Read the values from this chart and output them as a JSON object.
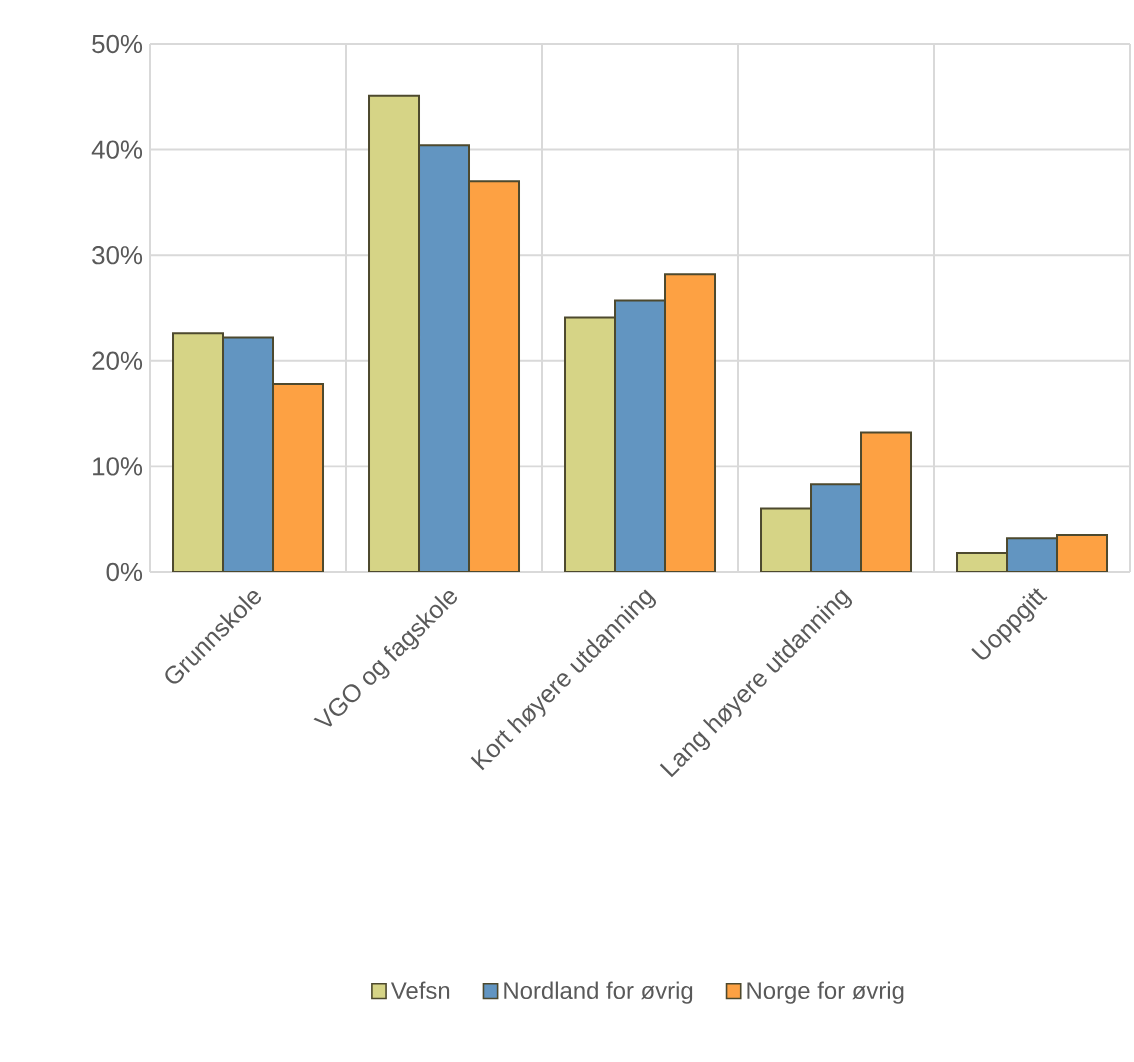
{
  "chart_data": {
    "type": "bar",
    "categories": [
      "Grunnskole",
      "VGO og fagskole",
      "Kort høyere utdanning",
      "Lang høyere utdanning",
      "Uoppgitt"
    ],
    "series": [
      {
        "name": "Vefsn",
        "color": "#d6d486",
        "values": [
          22.6,
          45.1,
          24.1,
          6.0,
          1.8
        ]
      },
      {
        "name": "Nordland for øvrig",
        "color": "#6295c1",
        "values": [
          22.2,
          40.4,
          25.7,
          8.3,
          3.2
        ]
      },
      {
        "name": "Norge for øvrig",
        "color": "#fda143",
        "values": [
          17.8,
          37.0,
          28.2,
          13.2,
          3.5
        ]
      }
    ],
    "ylim": [
      0,
      50
    ],
    "yticks": [
      {
        "value": 0,
        "label": "0%"
      },
      {
        "value": 10,
        "label": "10%"
      },
      {
        "value": 20,
        "label": "20%"
      },
      {
        "value": 30,
        "label": "30%"
      },
      {
        "value": 40,
        "label": "40%"
      },
      {
        "value": 50,
        "label": "50%"
      }
    ],
    "grid": true,
    "legend": "bottom"
  }
}
